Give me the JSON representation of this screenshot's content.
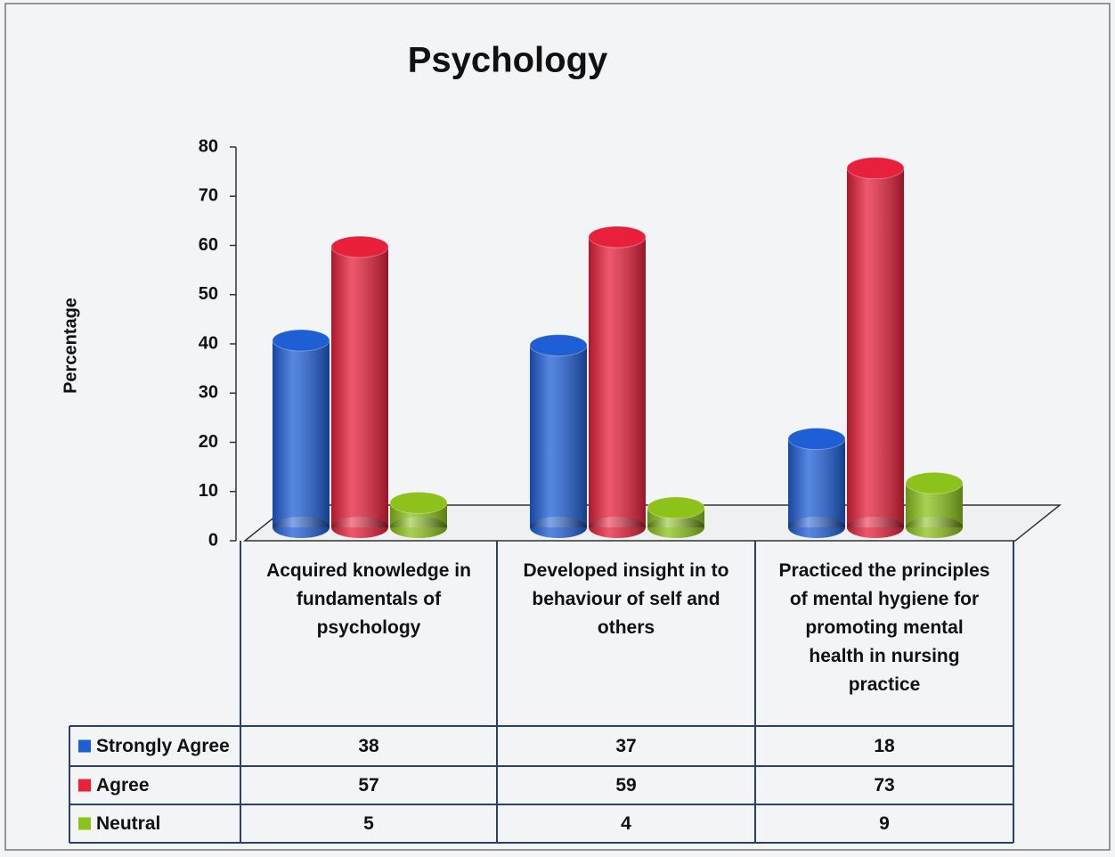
{
  "chart_data": {
    "type": "bar",
    "title": "Psychology",
    "y_label": "Percentage",
    "categories": [
      "Acquired knowledge in fundamentals of psychology",
      "Developed insight in to behaviour of self and others",
      "Practiced the principles of mental hygiene for promoting mental health in nursing practice"
    ],
    "series": [
      {
        "name": "Strongly Agree",
        "color": "#1f5fd6",
        "values": [
          38,
          37,
          18
        ]
      },
      {
        "name": "Agree",
        "color": "#e8203c",
        "values": [
          57,
          59,
          73
        ]
      },
      {
        "name": "Neutral",
        "color": "#8cc21a",
        "values": [
          5,
          4,
          9
        ]
      }
    ],
    "ylim": [
      0,
      80
    ],
    "yticks": [
      0,
      10,
      20,
      30,
      40,
      50,
      60,
      70,
      80
    ],
    "data_table": true
  }
}
